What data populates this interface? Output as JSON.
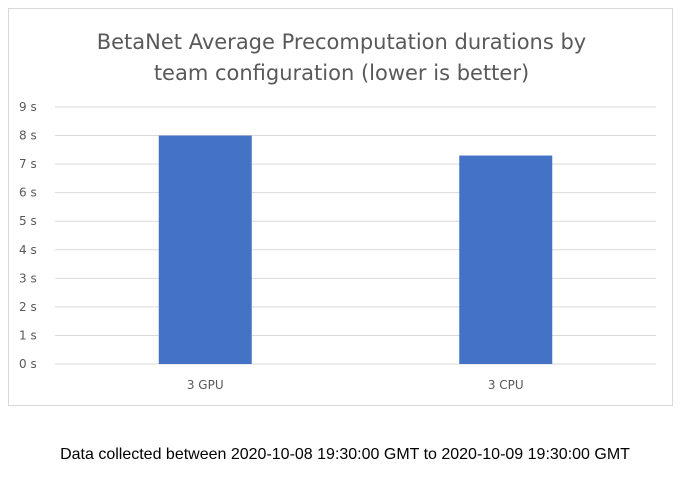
{
  "chart_data": {
    "type": "bar",
    "title_lines": [
      "BetaNet Average Precomputation durations by",
      "team configuration (lower is better)"
    ],
    "categories": [
      "3 GPU",
      "3 CPU"
    ],
    "values": [
      8.0,
      7.3
    ],
    "y_tick_labels": [
      "0 s",
      "1 s",
      "2 s",
      "3 s",
      "4 s",
      "5 s",
      "6 s",
      "7 s",
      "8 s",
      "9 s"
    ],
    "ylim": [
      0,
      9
    ],
    "grid": true,
    "legend": "none",
    "bar_color": "#4472c4",
    "gridline_color": "#d9d9d9"
  },
  "footnote": "Data collected between 2020-10-08 19:30:00 GMT to 2020-10-09 19:30:00 GMT"
}
